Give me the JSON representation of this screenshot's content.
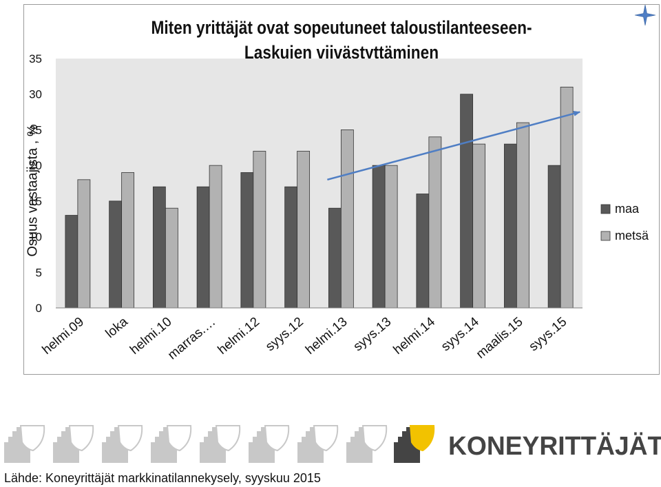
{
  "chart_data": {
    "type": "bar",
    "title_line1": "Miten yrittäjät ovat sopeutuneet taloustilanteeseen-",
    "title_line2": "Laskujen viivästyttäminen",
    "ylabel": "Osuus vastaajista , %",
    "xlabel": "",
    "ylim": [
      0,
      35
    ],
    "yticks": [
      0,
      5,
      10,
      15,
      20,
      25,
      30,
      35
    ],
    "categories": [
      "helmi.09",
      "loka",
      "helmi.10",
      "marras.…",
      "helmi.12",
      "syys.12",
      "helmi.13",
      "syys.13",
      "helmi.14",
      "syys.14",
      "maalis.15",
      "syys.15"
    ],
    "series": [
      {
        "name": "maa",
        "color": "#595959",
        "values": [
          13,
          15,
          17,
          17,
          19,
          17,
          14,
          20,
          16,
          30,
          23,
          20
        ]
      },
      {
        "name": "metsä",
        "color": "#b2b2b2",
        "values": [
          18,
          19,
          14,
          20,
          22,
          22,
          25,
          20,
          24,
          23,
          26,
          31
        ]
      }
    ],
    "trend_arrow": {
      "color": "#4f7ec4",
      "from": {
        "category_index": 6,
        "value": 18
      },
      "to": {
        "category_index": 11,
        "value": 27.5
      }
    },
    "grid": false,
    "legend_position": "right",
    "plot_background": "#e6e6e6"
  },
  "logo": {
    "text": "KONEYRITTÄJÄT",
    "accent_color": "#f2c200",
    "dark_color": "#444444",
    "pattern_color": "#c8c8c8"
  },
  "footer": {
    "source": "Lähde: Koneyrittäjät markkinatilannekysely,  syyskuu 2015"
  },
  "star_icon_color": "#4f7ec4"
}
